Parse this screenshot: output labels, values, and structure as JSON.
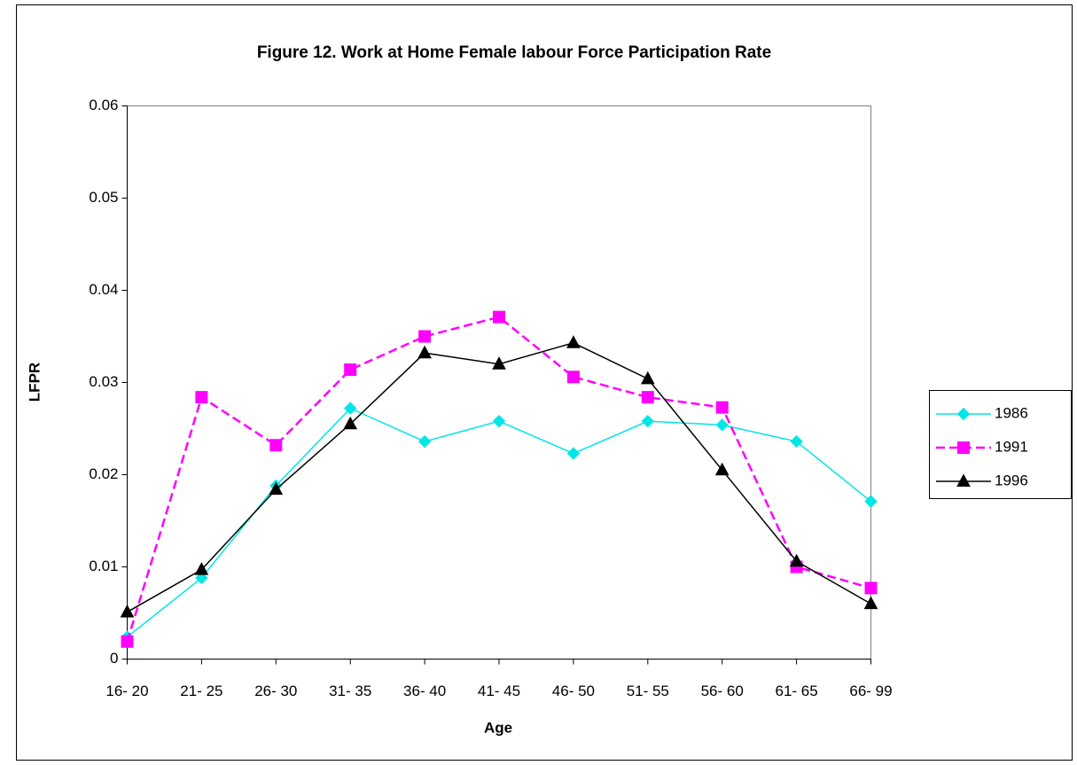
{
  "chart_data": {
    "type": "line",
    "title": "Figure 12. Work at Home Female labour Force Participation Rate",
    "x_label": "Age",
    "y_label": "LFPR",
    "categories": [
      "16- 20",
      "21- 25",
      "26- 30",
      "31- 35",
      "36- 40",
      "41- 45",
      "46- 50",
      "51- 55",
      "56- 60",
      "61- 65",
      "66- 99"
    ],
    "series": [
      {
        "name": "1986",
        "color": "#00e6e6",
        "marker": "diamond",
        "dash": false,
        "values": [
          0.0024,
          0.0088,
          0.0188,
          0.0272,
          0.0236,
          0.0258,
          0.0223,
          0.0258,
          0.0254,
          0.0236,
          0.0171
        ]
      },
      {
        "name": "1991",
        "color": "#ff00ff",
        "marker": "square",
        "dash": true,
        "values": [
          0.0019,
          0.0284,
          0.0232,
          0.0314,
          0.035,
          0.0371,
          0.0306,
          0.0284,
          0.0273,
          0.01,
          0.0077
        ]
      },
      {
        "name": "1996",
        "color": "#000000",
        "marker": "triangle",
        "dash": false,
        "values": [
          0.0051,
          0.0097,
          0.0184,
          0.0255,
          0.0332,
          0.032,
          0.0343,
          0.0304,
          0.0205,
          0.0106,
          0.006
        ]
      }
    ],
    "ylim": [
      0,
      0.06
    ],
    "yticks": [
      0,
      0.01,
      0.02,
      0.03,
      0.04,
      0.05,
      0.06
    ],
    "grid": false,
    "legend": "right"
  }
}
